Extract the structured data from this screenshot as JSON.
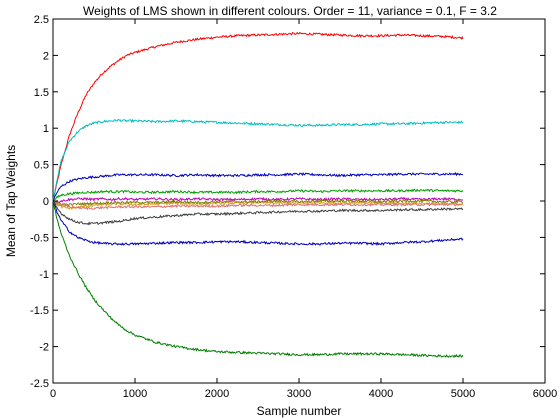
{
  "chart_data": {
    "type": "line",
    "title": "Weights of LMS shown in different colours. Order = 11, variance = 0.1, F = 3.2",
    "xlabel": "Sample number",
    "ylabel": "Mean of Tap Weights",
    "xlim": [
      0,
      6000
    ],
    "ylim": [
      -2.5,
      2.5
    ],
    "xticks": [
      0,
      1000,
      2000,
      3000,
      4000,
      5000,
      6000
    ],
    "yticks": [
      -2.5,
      -2,
      -1.5,
      -1,
      -0.5,
      0,
      0.5,
      1,
      1.5,
      2,
      2.5
    ],
    "xtick_labels": [
      "0",
      "1000",
      "2000",
      "3000",
      "4000",
      "5000",
      "6000"
    ],
    "ytick_labels": [
      "-2.5",
      "-2",
      "-1.5",
      "-1",
      "-0.5",
      "0",
      "0.5",
      "1",
      "1.5",
      "2",
      "2.5"
    ],
    "grid": false,
    "x": [
      0,
      50,
      100,
      200,
      300,
      400,
      500,
      600,
      700,
      800,
      900,
      1000,
      1250,
      1500,
      1750,
      2000,
      2250,
      2500,
      2750,
      3000,
      3250,
      3500,
      3750,
      4000,
      4250,
      4500,
      4750,
      5000
    ],
    "series": [
      {
        "color": "#ff0000",
        "values": [
          0,
          0.25,
          0.5,
          0.9,
          1.2,
          1.45,
          1.62,
          1.75,
          1.85,
          1.93,
          2.0,
          2.04,
          2.12,
          2.18,
          2.22,
          2.25,
          2.27,
          2.28,
          2.29,
          2.3,
          2.29,
          2.28,
          2.27,
          2.27,
          2.28,
          2.27,
          2.26,
          2.24
        ]
      },
      {
        "color": "#00bfbf",
        "values": [
          0,
          0.3,
          0.55,
          0.82,
          0.95,
          1.03,
          1.07,
          1.09,
          1.1,
          1.11,
          1.1,
          1.1,
          1.09,
          1.1,
          1.09,
          1.08,
          1.07,
          1.06,
          1.05,
          1.04,
          1.04,
          1.05,
          1.05,
          1.06,
          1.06,
          1.07,
          1.08,
          1.08
        ]
      },
      {
        "color": "#0000bf",
        "values": [
          0,
          0.12,
          0.2,
          0.27,
          0.3,
          0.32,
          0.33,
          0.34,
          0.35,
          0.36,
          0.36,
          0.36,
          0.36,
          0.35,
          0.36,
          0.35,
          0.35,
          0.36,
          0.36,
          0.37,
          0.36,
          0.35,
          0.36,
          0.36,
          0.37,
          0.37,
          0.37,
          0.37
        ]
      },
      {
        "color": "#00a000",
        "values": [
          0,
          0.05,
          0.08,
          0.1,
          0.11,
          0.12,
          0.12,
          0.13,
          0.13,
          0.13,
          0.13,
          0.12,
          0.12,
          0.13,
          0.12,
          0.12,
          0.12,
          0.13,
          0.13,
          0.14,
          0.13,
          0.14,
          0.14,
          0.14,
          0.14,
          0.15,
          0.14,
          0.14
        ]
      },
      {
        "color": "#bf00bf",
        "values": [
          0,
          -0.01,
          0.0,
          0.02,
          0.03,
          0.03,
          0.02,
          0.03,
          0.02,
          0.03,
          0.03,
          0.02,
          0.03,
          0.02,
          0.03,
          0.02,
          0.02,
          0.03,
          0.02,
          0.03,
          0.02,
          0.03,
          0.02,
          0.02,
          0.03,
          0.02,
          0.03,
          0.02
        ]
      },
      {
        "color": "#d4a020",
        "values": [
          0,
          -0.05,
          -0.08,
          -0.1,
          -0.09,
          -0.07,
          -0.06,
          -0.05,
          -0.05,
          -0.04,
          -0.04,
          -0.05,
          -0.04,
          -0.03,
          -0.04,
          -0.03,
          -0.03,
          -0.02,
          -0.03,
          -0.03,
          -0.02,
          -0.03,
          -0.02,
          -0.03,
          -0.03,
          -0.03,
          -0.04,
          -0.04
        ]
      },
      {
        "color": "#808000",
        "values": [
          0,
          -0.02,
          -0.04,
          -0.05,
          -0.04,
          -0.04,
          -0.03,
          -0.03,
          -0.02,
          -0.02,
          -0.02,
          -0.02,
          -0.02,
          -0.01,
          -0.02,
          -0.01,
          -0.01,
          -0.01,
          0.0,
          -0.01,
          0.0,
          0.0,
          0.0,
          -0.01,
          0.0,
          0.0,
          -0.01,
          -0.01
        ]
      },
      {
        "color": "#e07070",
        "values": [
          0,
          -0.03,
          -0.06,
          -0.08,
          -0.09,
          -0.1,
          -0.1,
          -0.09,
          -0.09,
          -0.08,
          -0.08,
          -0.08,
          -0.08,
          -0.07,
          -0.07,
          -0.07,
          -0.06,
          -0.06,
          -0.06,
          -0.05,
          -0.05,
          -0.05,
          -0.05,
          -0.05,
          -0.05,
          -0.05,
          -0.05,
          -0.05
        ]
      },
      {
        "color": "#404040",
        "values": [
          0,
          -0.1,
          -0.17,
          -0.25,
          -0.29,
          -0.31,
          -0.31,
          -0.3,
          -0.29,
          -0.28,
          -0.26,
          -0.24,
          -0.22,
          -0.2,
          -0.18,
          -0.18,
          -0.17,
          -0.16,
          -0.15,
          -0.14,
          -0.14,
          -0.13,
          -0.13,
          -0.13,
          -0.12,
          -0.12,
          -0.11,
          -0.11
        ]
      },
      {
        "color": "#0000bf",
        "values": [
          0,
          -0.15,
          -0.27,
          -0.42,
          -0.5,
          -0.54,
          -0.57,
          -0.58,
          -0.59,
          -0.59,
          -0.59,
          -0.59,
          -0.58,
          -0.57,
          -0.57,
          -0.56,
          -0.56,
          -0.57,
          -0.58,
          -0.59,
          -0.59,
          -0.58,
          -0.58,
          -0.59,
          -0.57,
          -0.56,
          -0.54,
          -0.52
        ]
      },
      {
        "color": "#008000",
        "values": [
          0,
          -0.25,
          -0.45,
          -0.75,
          -0.98,
          -1.18,
          -1.35,
          -1.48,
          -1.6,
          -1.7,
          -1.78,
          -1.84,
          -1.94,
          -2.0,
          -2.04,
          -2.07,
          -2.08,
          -2.09,
          -2.1,
          -2.11,
          -2.11,
          -2.1,
          -2.1,
          -2.1,
          -2.11,
          -2.12,
          -2.13,
          -2.13
        ]
      }
    ]
  }
}
